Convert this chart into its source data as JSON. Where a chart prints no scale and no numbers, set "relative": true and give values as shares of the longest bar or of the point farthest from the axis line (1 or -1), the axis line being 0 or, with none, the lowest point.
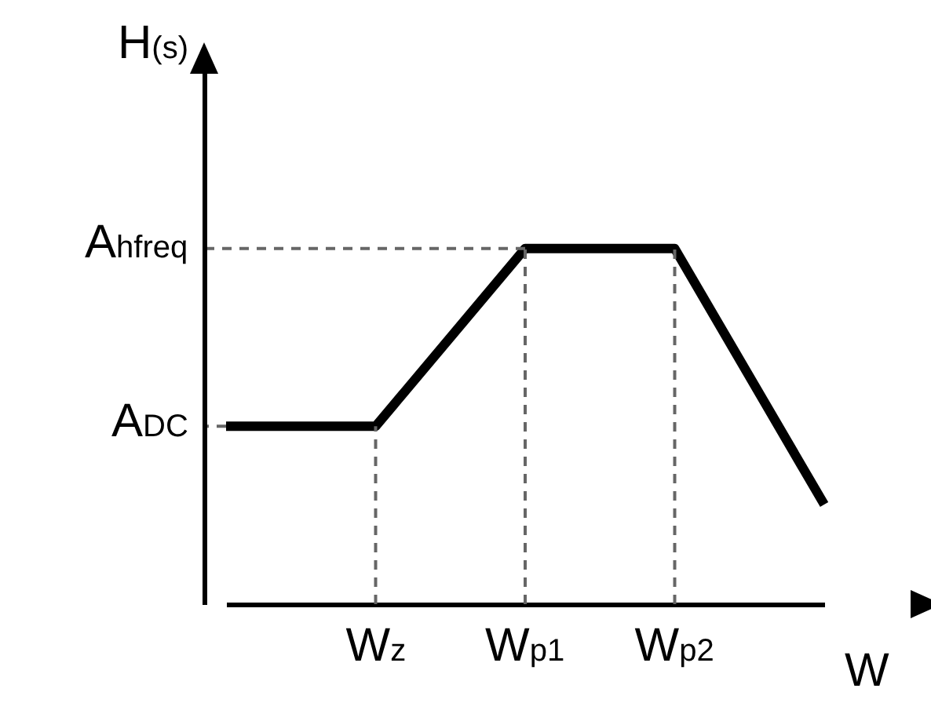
{
  "chart_data": {
    "type": "line",
    "relative": true,
    "xlabel": "W",
    "ylabel": "H$_{(s)}$",
    "categories": [
      null,
      "W$_{z}$",
      "W$_{p1}$",
      "W$_{p2}$",
      null
    ],
    "values": [
      0.5,
      0.5,
      1,
      1,
      0.28
    ],
    "color": "#000000",
    "ref_lines": [
      {
        "axis": "y",
        "value": 1,
        "label": "A$_{hfreq}$",
        "color": "#666666",
        "line_style": "dashed"
      },
      {
        "axis": "y",
        "value": 0.5,
        "label": "A$_{DC}$",
        "color": "#666666",
        "line_style": "dashed"
      },
      {
        "axis": "x",
        "value": "W$_{z}$",
        "color": "#666666",
        "line_style": "dashed"
      },
      {
        "axis": "x",
        "value": "W$_{p1}$",
        "color": "#666666",
        "line_style": "dashed"
      },
      {
        "axis": "x",
        "value": "W$_{p2}$",
        "color": "#666666",
        "line_style": "dashed"
      }
    ],
    "grid": false
  }
}
